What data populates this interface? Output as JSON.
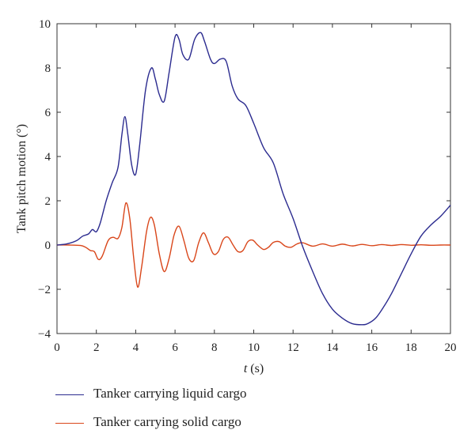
{
  "chart_data": {
    "type": "line",
    "xlabel_var": "t",
    "xlabel_unit": " (s)",
    "ylabel": "Tank pitch motion (°)",
    "xlim": [
      0,
      20
    ],
    "ylim": [
      -4,
      10
    ],
    "xticks": [
      0,
      2,
      4,
      6,
      8,
      10,
      12,
      14,
      16,
      18,
      20
    ],
    "yticks": [
      -4,
      -2,
      0,
      2,
      4,
      6,
      8,
      10
    ],
    "grid": false,
    "legend_position": "bottom, below plot",
    "series": [
      {
        "name": "Tanker carrying liquid cargo",
        "color": "#2b2b8f",
        "x": [
          0,
          0.5,
          1.0,
          1.3,
          1.6,
          1.8,
          2.0,
          2.2,
          2.5,
          2.8,
          3.1,
          3.3,
          3.45,
          3.6,
          3.8,
          4.0,
          4.2,
          4.5,
          4.8,
          5.0,
          5.2,
          5.45,
          5.7,
          6.0,
          6.2,
          6.4,
          6.7,
          7.0,
          7.3,
          7.5,
          7.8,
          8.0,
          8.3,
          8.6,
          8.9,
          9.2,
          9.6,
          10.0,
          10.5,
          11.0,
          11.5,
          12.0,
          12.5,
          13.0,
          13.5,
          14.0,
          14.5,
          15.0,
          15.5,
          15.8,
          16.2,
          16.6,
          17.0,
          17.5,
          18.0,
          18.5,
          19.0,
          19.5,
          20.0
        ],
        "values": [
          0,
          0.05,
          0.2,
          0.4,
          0.5,
          0.7,
          0.6,
          1.0,
          2.0,
          2.8,
          3.5,
          5.0,
          5.8,
          5.0,
          3.6,
          3.2,
          4.5,
          7.0,
          8.0,
          7.5,
          6.8,
          6.5,
          7.8,
          9.4,
          9.3,
          8.6,
          8.4,
          9.3,
          9.6,
          9.2,
          8.4,
          8.2,
          8.4,
          8.3,
          7.2,
          6.6,
          6.3,
          5.5,
          4.4,
          3.7,
          2.3,
          1.2,
          -0.1,
          -1.2,
          -2.2,
          -2.9,
          -3.3,
          -3.55,
          -3.6,
          -3.55,
          -3.3,
          -2.8,
          -2.2,
          -1.3,
          -0.4,
          0.4,
          0.9,
          1.3,
          1.8
        ]
      },
      {
        "name": "Tanker carrying solid cargo",
        "color": "#d9461a",
        "x": [
          0,
          0.6,
          1.2,
          1.45,
          1.7,
          1.9,
          2.1,
          2.3,
          2.6,
          2.85,
          3.1,
          3.3,
          3.5,
          3.7,
          3.9,
          4.1,
          4.3,
          4.55,
          4.75,
          4.95,
          5.2,
          5.45,
          5.7,
          5.95,
          6.2,
          6.45,
          6.7,
          6.95,
          7.2,
          7.45,
          7.7,
          7.95,
          8.2,
          8.45,
          8.7,
          8.95,
          9.2,
          9.45,
          9.7,
          9.95,
          10.2,
          10.5,
          10.75,
          11.0,
          11.3,
          11.6,
          11.9,
          12.2,
          12.5,
          13.0,
          13.5,
          14.0,
          14.5,
          15.0,
          15.5,
          16.0,
          16.5,
          17.0,
          17.5,
          18.0,
          18.5,
          19.0,
          19.5,
          20.0
        ],
        "values": [
          0,
          0,
          -0.02,
          -0.1,
          -0.25,
          -0.3,
          -0.65,
          -0.5,
          0.2,
          0.35,
          0.3,
          0.8,
          1.9,
          1.2,
          -0.6,
          -1.9,
          -1.0,
          0.6,
          1.25,
          0.9,
          -0.4,
          -1.2,
          -0.6,
          0.45,
          0.85,
          0.2,
          -0.6,
          -0.7,
          0.1,
          0.55,
          0.1,
          -0.4,
          -0.3,
          0.25,
          0.35,
          0.0,
          -0.3,
          -0.25,
          0.15,
          0.22,
          0.0,
          -0.2,
          -0.1,
          0.12,
          0.15,
          -0.05,
          -0.1,
          0.05,
          0.1,
          -0.05,
          0.05,
          -0.05,
          0.04,
          -0.04,
          0.03,
          -0.03,
          0.02,
          -0.02,
          0.02,
          -0.01,
          0.01,
          -0.01,
          0.0,
          0.0
        ]
      }
    ]
  }
}
